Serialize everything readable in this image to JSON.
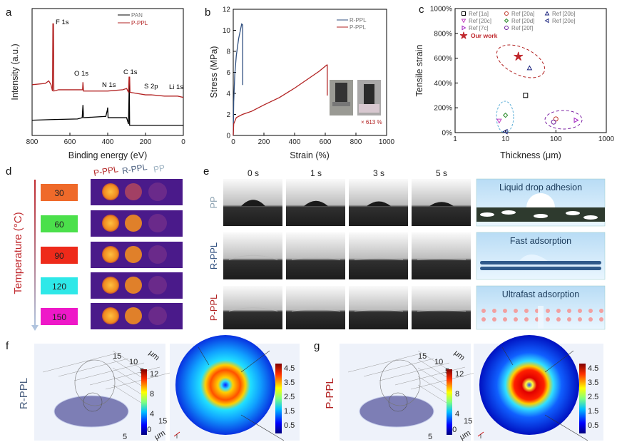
{
  "panels": {
    "a": "a",
    "b": "b",
    "c": "c",
    "d": "d",
    "e": "e",
    "f": "f",
    "g": "g"
  },
  "colors": {
    "pan": "#000000",
    "pppl": "#b22222",
    "rppl": "#2f4f7f",
    "pp": "#8aa0b0"
  },
  "chart_data": [
    {
      "type": "line",
      "id": "a",
      "xlabel": "Binding energy (eV)",
      "ylabel": "Intensity (a.u.)",
      "xlim": [
        800,
        0
      ],
      "xticks": [
        "800",
        "600",
        "400",
        "200",
        "0"
      ],
      "legend": [
        "PAN",
        "P-PPL"
      ],
      "legend_position": "top-right",
      "annotations": [
        "F 1s",
        "O 1s",
        "N 1s",
        "C 1s",
        "S 2p",
        "Li 1s"
      ],
      "series": [
        {
          "name": "PAN",
          "points": [
            [
              800,
              12
            ],
            [
              700,
              12.5
            ],
            [
              560,
              13
            ],
            [
              535,
              14
            ],
            [
              531,
              24
            ],
            [
              528,
              14
            ],
            [
              410,
              15
            ],
            [
              402,
              20
            ],
            [
              400,
              22
            ],
            [
              398,
              14
            ],
            [
              300,
              14
            ],
            [
              290,
              9
            ],
            [
              286,
              42
            ],
            [
              284,
              8
            ],
            [
              150,
              8
            ],
            [
              0,
              8
            ]
          ]
        },
        {
          "name": "P-PPL",
          "points": [
            [
              800,
              40
            ],
            [
              730,
              41
            ],
            [
              712,
              43
            ],
            [
              700,
              40
            ],
            [
              692,
              35
            ],
            [
              690,
              88
            ],
            [
              687,
              88
            ],
            [
              685,
              35
            ],
            [
              660,
              36
            ],
            [
              540,
              36
            ],
            [
              533,
              36
            ],
            [
              531,
              42
            ],
            [
              528,
              35
            ],
            [
              400,
              35
            ],
            [
              320,
              36
            ],
            [
              300,
              37
            ],
            [
              290,
              34
            ],
            [
              287,
              46
            ],
            [
              284,
              46
            ],
            [
              282,
              34
            ],
            [
              200,
              32
            ],
            [
              170,
              32
            ],
            [
              100,
              31
            ],
            [
              30,
              31
            ],
            [
              0,
              30
            ]
          ]
        }
      ]
    },
    {
      "type": "line",
      "id": "b",
      "xlabel": "Strain (%)",
      "ylabel": "Stress (MPa)",
      "xlim": [
        0,
        1000
      ],
      "ylim": [
        0,
        12
      ],
      "xticks": [
        "0",
        "200",
        "400",
        "600",
        "800",
        "1000"
      ],
      "yticks": [
        "0",
        "2",
        "4",
        "6",
        "8",
        "10",
        "12"
      ],
      "legend": [
        "R-PPL",
        "P-PPL"
      ],
      "legend_position": "top-right",
      "annotation": "× 613 %",
      "series": [
        {
          "name": "R-PPL",
          "points": [
            [
              0,
              0
            ],
            [
              3,
              3.2
            ],
            [
              10,
              5.8
            ],
            [
              20,
              7.6
            ],
            [
              35,
              9.2
            ],
            [
              55,
              10.6
            ],
            [
              62,
              10.5
            ],
            [
              62,
              4.8
            ]
          ]
        },
        {
          "name": "P-PPL",
          "points": [
            [
              0,
              0
            ],
            [
              3,
              1.1
            ],
            [
              20,
              1.7
            ],
            [
              60,
              2.0
            ],
            [
              120,
              2.3
            ],
            [
              200,
              2.9
            ],
            [
              300,
              3.6
            ],
            [
              400,
              4.5
            ],
            [
              500,
              5.5
            ],
            [
              560,
              6.1
            ],
            [
              610,
              6.7
            ],
            [
              613,
              6.7
            ],
            [
              613,
              3.8
            ]
          ]
        }
      ]
    },
    {
      "type": "scatter",
      "id": "c",
      "xlabel": "Thickness (μm)",
      "ylabel": "Tensile strain",
      "xscale": "log",
      "xlim": [
        1,
        1000
      ],
      "ylim": [
        0,
        1000
      ],
      "xticks": [
        "1",
        "10",
        "100",
        "1000"
      ],
      "yticks": [
        "0%",
        "200%",
        "400%",
        "600%",
        "800%",
        "1000%"
      ],
      "legend_position": "top-left",
      "series": [
        {
          "name": "Ref [1a]",
          "marker": "square",
          "color": "#000000",
          "x": 25,
          "y": 300
        },
        {
          "name": "Ref [20a]",
          "marker": "circle",
          "color": "#c0392b",
          "x": 100,
          "y": 110
        },
        {
          "name": "Ref [20b]",
          "marker": "triangle-up",
          "color": "#1a237e",
          "x": 30,
          "y": 520
        },
        {
          "name": "Ref [20c]",
          "marker": "triangle-down",
          "color": "#c040c0",
          "x": 7.5,
          "y": 95
        },
        {
          "name": "Ref [20d]",
          "marker": "diamond",
          "color": "#2e8b2e",
          "x": 10,
          "y": 140
        },
        {
          "name": "Ref [20e]",
          "marker": "triangle-left",
          "color": "#1a237e",
          "x": 10,
          "y": 8
        },
        {
          "name": "Ref [7c]",
          "marker": "triangle-right",
          "color": "#a020c0",
          "x": 250,
          "y": 100
        },
        {
          "name": "Ref [20f]",
          "marker": "circle",
          "color": "#6a1b9a",
          "x": 90,
          "y": 85
        },
        {
          "name": "Our work",
          "marker": "star",
          "color": "#c0282d",
          "x": 18,
          "y": 613
        }
      ]
    }
  ],
  "panel_d": {
    "axis_label": "Temperature (°C)",
    "columns": [
      "P-PPL",
      "R-PPL",
      "PP"
    ],
    "temps": [
      {
        "value": "30",
        "color": "#ef6a2a"
      },
      {
        "value": "60",
        "color": "#4be04b"
      },
      {
        "value": "90",
        "color": "#ee2a1a"
      },
      {
        "value": "120",
        "color": "#2ee8e8"
      },
      {
        "value": "150",
        "color": "#ee18c8"
      }
    ]
  },
  "panel_e": {
    "times": [
      "0 s",
      "1 s",
      "3 s",
      "5 s"
    ],
    "rows": [
      "PP",
      "R-PPL",
      "P-PPL"
    ],
    "schematics": [
      "Liquid drop adhesion",
      "Fast adsorption",
      "Ultrafast adsorption"
    ]
  },
  "panel_f": {
    "row_label": "R-PPL",
    "unit": "μm",
    "axis_ticks": [
      "15",
      "10",
      "5"
    ],
    "colorbar_3d": [
      "12",
      "8",
      "4"
    ],
    "colorbar_top": [
      "4.5",
      "3.5",
      "2.5",
      "1.5",
      "0.5"
    ]
  },
  "panel_g": {
    "row_label": "P-PPL",
    "unit": "μm",
    "axis_ticks": [
      "15",
      "10",
      "5"
    ],
    "colorbar_3d": [
      "12",
      "8",
      "4"
    ],
    "colorbar_top": [
      "4.5",
      "3.5",
      "2.5",
      "1.5",
      "0.5"
    ]
  }
}
